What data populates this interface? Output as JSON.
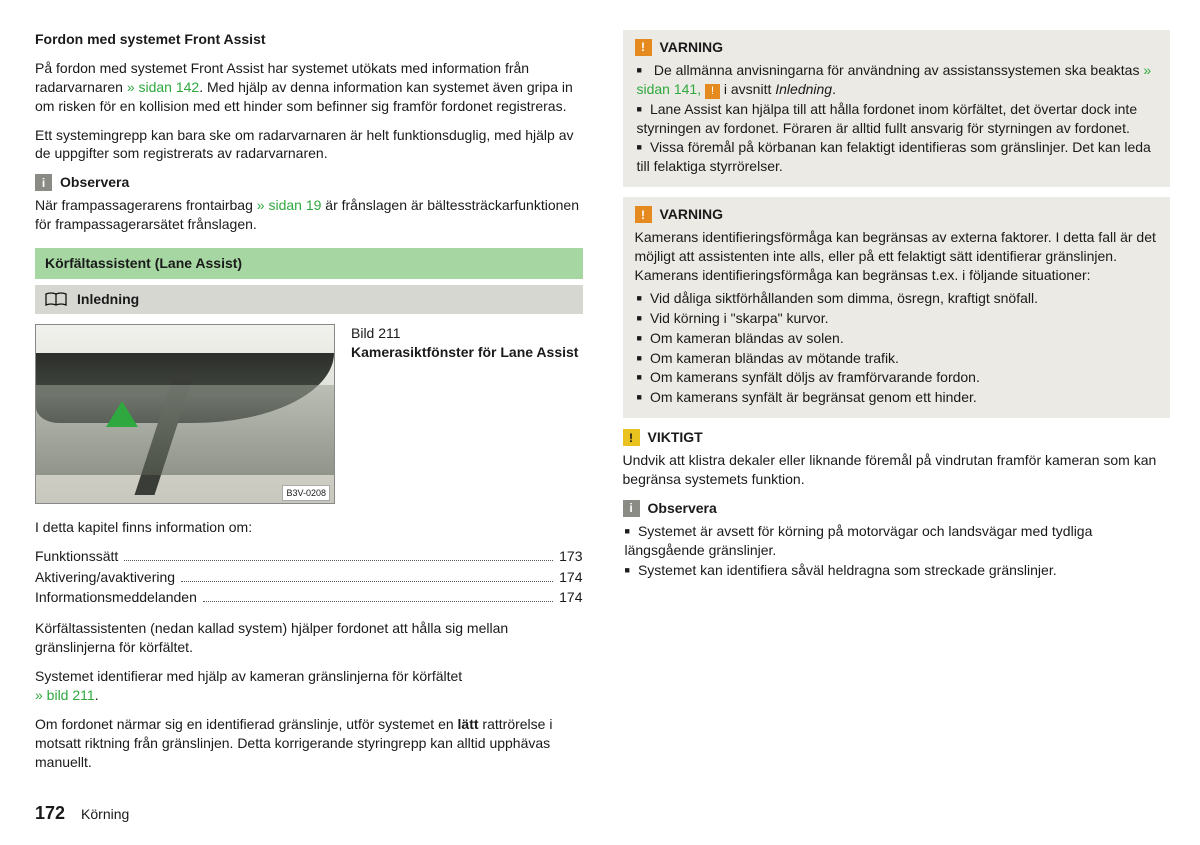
{
  "col1": {
    "h1": "Fordon med systemet Front Assist",
    "p1a": "På fordon med systemet Front Assist har systemet utökats med information från radarvarnaren ",
    "p1link": "» sidan 142",
    "p1b": ". Med hjälp av denna information kan systemet även gripa in om risken för en kollision med ett hinder som befinner sig framför fordonet registreras.",
    "p2": "Ett systemingrepp kan bara ske om radarvarnaren är helt funktionsduglig, med hjälp av de uppgifter som registrerats av radarvarnaren.",
    "obs_title": "Observera",
    "obs_a": "När frampassagerarens frontairbag ",
    "obs_link": "» sidan 19",
    "obs_b": " är frånslagen är bältessträckarfunktionen för frampassagerarsätet frånslagen.",
    "green_header": "Körfältassistent (Lane Assist)",
    "grey_header": "Inledning",
    "fig_num": "Bild 211",
    "fig_title": "Kamerasiktfönster för Lane Assist",
    "fig_code": "B3V-0208",
    "toc_intro": "I detta kapitel finns information om:",
    "toc": [
      {
        "label": "Funktionssätt",
        "page": "173"
      },
      {
        "label": "Aktivering/avaktivering",
        "page": "174"
      },
      {
        "label": "Informationsmeddelanden",
        "page": "174"
      }
    ],
    "p3": "Körfältassistenten (nedan kallad system) hjälper fordonet att hålla sig mellan gränslinjerna för körfältet.",
    "p4a": "Systemet identifierar med hjälp av kameran gränslinjerna för körfältet ",
    "p4link": "» bild 211",
    "p4b": ".",
    "p5a": "Om fordonet närmar sig en identifierad gränslinje, utför systemet en ",
    "p5bold": "lätt",
    "p5b": " rattrörelse i motsatt riktning från gränslinjen. Detta korrigerande styringrepp kan alltid upphävas manuellt."
  },
  "col2": {
    "warn1": {
      "title": "VARNING",
      "li1a": "De allmänna anvisningarna för användning av assistanssystemen ska beaktas ",
      "li1link": "» sidan 141, ",
      "li1b": " i avsnitt ",
      "li1i": "Inledning",
      "li1c": ".",
      "li2": "Lane Assist kan hjälpa till att hålla fordonet inom körfältet, det övertar dock inte styrningen av fordonet. Föraren är alltid fullt ansvarig för styrningen av fordonet.",
      "li3": "Vissa föremål på körbanan kan felaktigt identifieras som gränslinjer. Det kan leda till felaktiga styrrörelser."
    },
    "warn2": {
      "title": "VARNING",
      "intro": "Kamerans identifieringsförmåga kan begränsas av externa faktorer. I detta fall är det möjligt att assistenten inte alls, eller på ett felaktigt sätt identifierar gränslinjen. Kamerans identifieringsförmåga kan begränsas t.ex. i följande situationer:",
      "items": [
        "Vid dåliga siktförhållanden som dimma, ösregn, kraftigt snöfall.",
        "Vid körning i \"skarpa\" kurvor.",
        "Om kameran bländas av solen.",
        "Om kameran bländas av mötande trafik.",
        "Om kamerans synfält döljs av framförvarande fordon.",
        "Om kamerans synfält är begränsat genom ett hinder."
      ]
    },
    "viktigt": {
      "title": "VIKTIGT",
      "body": "Undvik att klistra dekaler eller liknande föremål på vindrutan framför kameran som kan begränsa systemets funktion."
    },
    "obs": {
      "title": "Observera",
      "items": [
        "Systemet är avsett för körning på motorvägar och landsvägar med tydliga längsgående gränslinjer.",
        "Systemet kan identifiera såväl heldragna som streckade gränslinjer."
      ]
    }
  },
  "footer": {
    "page": "172",
    "title": "Körning"
  },
  "colors": {
    "link": "#2fa83f",
    "header_green": "#a6d7a2",
    "header_grey": "#d7d7d2",
    "callout_bg": "#eceae4",
    "warn_badge": "#e58a1f",
    "warn_badge_y": "#e9c21f",
    "info_badge": "#8b8b86"
  }
}
